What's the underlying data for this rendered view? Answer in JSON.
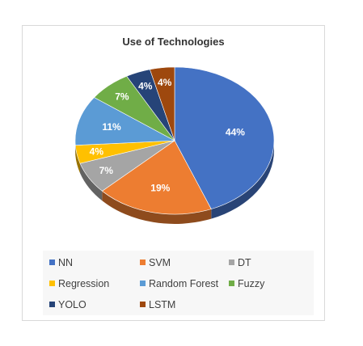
{
  "chart_data": {
    "type": "pie",
    "style": "3d",
    "title": "Use of Technologies",
    "categories": [
      "NN",
      "SVM",
      "DT",
      "Regression",
      "Random Forest",
      "Fuzzy",
      "YOLO",
      "LSTM"
    ],
    "values": [
      44,
      19,
      7,
      4,
      11,
      7,
      4,
      4
    ],
    "data_labels": [
      "44%",
      "19%",
      "7%",
      "4%",
      "11%",
      "7%",
      "4%",
      "4%"
    ],
    "colors": [
      "#4472C4",
      "#ED7D31",
      "#A5A5A5",
      "#FFC000",
      "#5B9BD5",
      "#70AD47",
      "#264478",
      "#9E480E"
    ],
    "legend_placement": "bottom"
  }
}
